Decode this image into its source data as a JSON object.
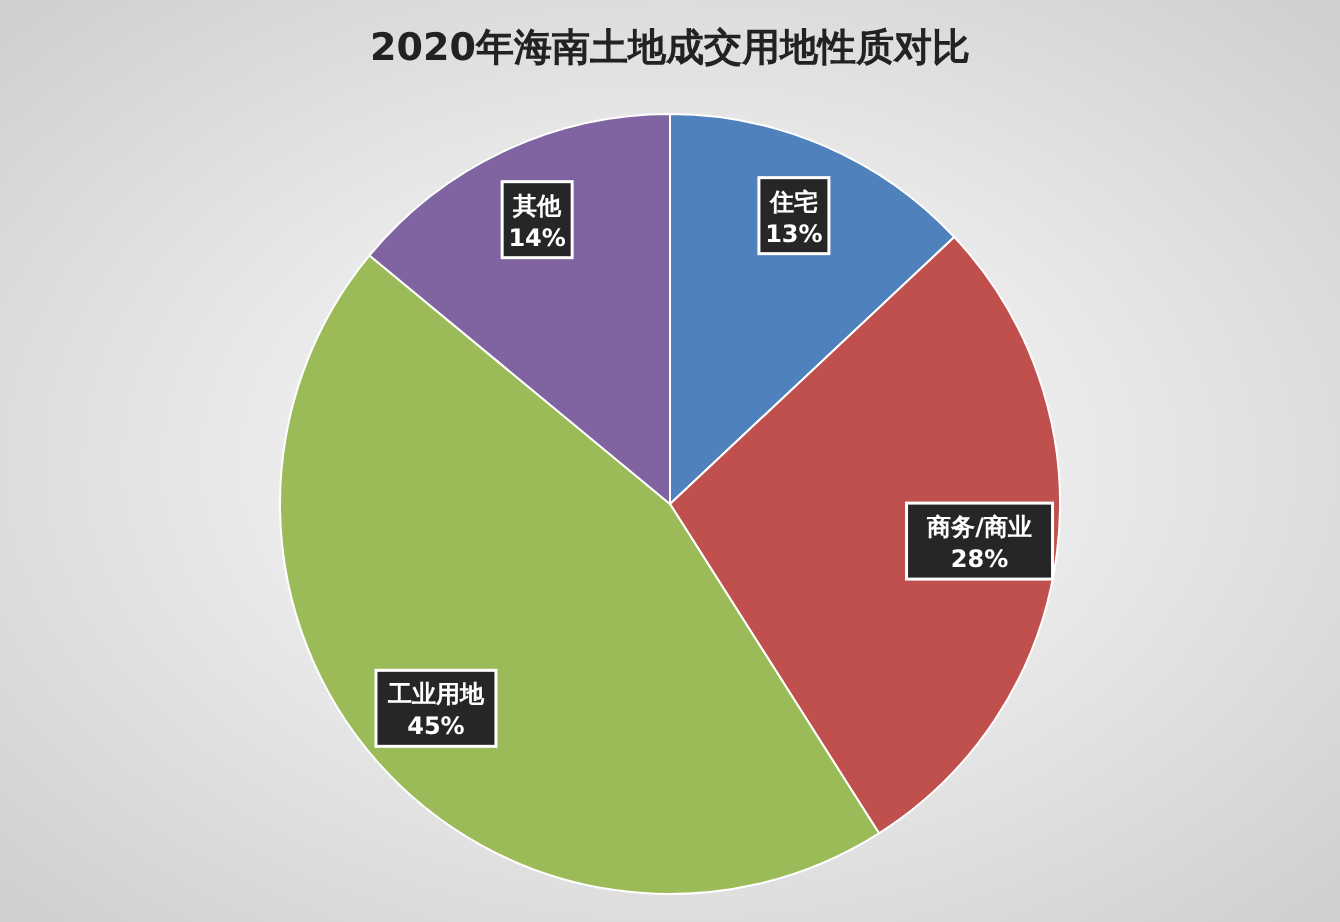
{
  "chart_data": {
    "type": "pie",
    "title": "2020年海南土地成交用地性质对比",
    "categories": [
      "住宅",
      "商务/商业",
      "工业用地",
      "其他"
    ],
    "values": [
      13,
      28,
      45,
      14
    ],
    "colors": [
      "#4f81bd",
      "#c0504d",
      "#9bbb59",
      "#8064a2"
    ],
    "value_labels": [
      "13%",
      "28%",
      "45%",
      "14%"
    ]
  }
}
